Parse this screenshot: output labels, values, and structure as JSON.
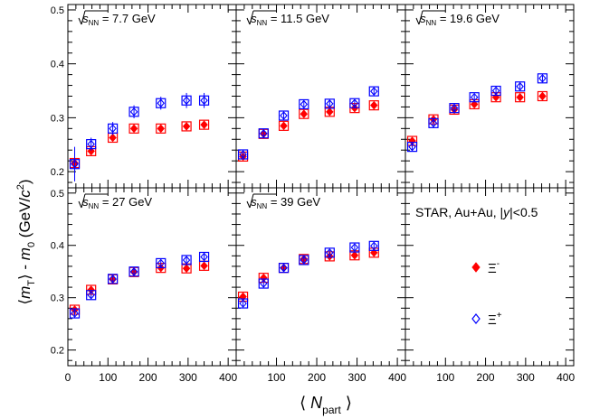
{
  "figure": {
    "ylabel": {
      "open": "⟨",
      "m": "m",
      "sub_T": "T",
      "close": "⟩ - ",
      "m0": "m",
      "sub_0": "0",
      "unit_open": " (GeV/",
      "c": "c",
      "sup_2": "2",
      "unit_close": ")"
    },
    "xlabel": {
      "open": "⟨ ",
      "n": "N",
      "sub": "part",
      "close": " ⟩"
    },
    "legend": {
      "title": {
        "prefix": "STAR, Au+Au, |",
        "y": "y",
        "suffix": "|<0.5"
      },
      "xi_minus": {
        "symbol": "Ξ",
        "sup": "-"
      },
      "xi_plus": {
        "symbol": "Ξ",
        "sup": "+"
      }
    },
    "colors": {
      "xi_minus": "#ff0000",
      "xi_plus": "#0000ff"
    }
  },
  "chart_data": [
    {
      "type": "scatter",
      "panel_label": {
        "root": "√",
        "s": "s",
        "sub": "NN",
        "energy": " = 7.7 GeV"
      },
      "xlim": [
        0,
        420
      ],
      "ylim": [
        0.17,
        0.51
      ],
      "yticks": [
        "0.2",
        "0.3",
        "0.4",
        "0.5"
      ],
      "xticks": [],
      "series": [
        {
          "x": [
            17,
            58,
            112,
            165,
            232,
            296,
            340
          ],
          "y": [
            0.216,
            0.238,
            0.263,
            0.28,
            0.28,
            0.284,
            0.287
          ]
        },
        {
          "x": [
            17,
            58,
            112,
            165,
            232,
            296,
            340
          ],
          "y": [
            0.214,
            0.251,
            0.28,
            0.311,
            0.327,
            0.332,
            0.332
          ],
          "err": [
            0.032,
            0.012,
            0.012,
            0.012,
            0.012,
            0.014,
            0.014
          ]
        }
      ]
    },
    {
      "type": "scatter",
      "panel_label": {
        "root": "√",
        "s": "s",
        "sub": "NN",
        "energy": " = 11.5 GeV"
      },
      "xlim": [
        0,
        420
      ],
      "ylim": [
        0.17,
        0.51
      ],
      "yticks": [],
      "xticks": [],
      "series": [
        {
          "x": [
            17,
            68,
            118,
            168,
            232,
            294,
            342
          ],
          "y": [
            0.228,
            0.27,
            0.285,
            0.307,
            0.311,
            0.318,
            0.323
          ]
        },
        {
          "x": [
            17,
            68,
            118,
            168,
            232,
            294,
            342
          ],
          "y": [
            0.232,
            0.271,
            0.304,
            0.325,
            0.326,
            0.327,
            0.349
          ],
          "err": [
            0.008,
            0.006,
            0.006,
            0.006,
            0.006,
            0.006,
            0.006
          ]
        }
      ]
    },
    {
      "type": "scatter",
      "panel_label": {
        "root": "√",
        "s": "s",
        "sub": "NN",
        "energy": " = 19.6 GeV"
      },
      "xlim": [
        0,
        420
      ],
      "ylim": [
        0.17,
        0.51
      ],
      "yticks": [],
      "xticks": [],
      "series": [
        {
          "x": [
            17,
            70,
            122,
            172,
            226,
            286,
            342
          ],
          "y": [
            0.257,
            0.297,
            0.315,
            0.325,
            0.338,
            0.338,
            0.34
          ]
        },
        {
          "x": [
            17,
            70,
            122,
            172,
            226,
            286,
            342
          ],
          "y": [
            0.246,
            0.29,
            0.318,
            0.338,
            0.35,
            0.358,
            0.373
          ],
          "err": [
            0.005,
            0.005,
            0.005,
            0.005,
            0.005,
            0.005,
            0.005
          ]
        }
      ]
    },
    {
      "type": "scatter",
      "panel_label": {
        "root": "√",
        "s": "s",
        "sub": "NN",
        "energy": " = 27 GeV"
      },
      "xlim": [
        0,
        420
      ],
      "ylim": [
        0.17,
        0.51
      ],
      "yticks": [
        "0.2",
        "0.3",
        "0.4",
        "0.5"
      ],
      "xticks": [
        "0",
        "100",
        "200",
        "300",
        "400"
      ],
      "series": [
        {
          "x": [
            17,
            58,
            112,
            165,
            232,
            296,
            340
          ],
          "y": [
            0.277,
            0.315,
            0.335,
            0.349,
            0.357,
            0.356,
            0.361
          ]
        },
        {
          "x": [
            17,
            58,
            112,
            165,
            232,
            296,
            340
          ],
          "y": [
            0.27,
            0.305,
            0.336,
            0.35,
            0.366,
            0.372,
            0.378
          ],
          "err": [
            0.005,
            0.005,
            0.005,
            0.005,
            0.005,
            0.005,
            0.005
          ]
        }
      ]
    },
    {
      "type": "scatter",
      "panel_label": {
        "root": "√",
        "s": "s",
        "sub": "NN",
        "energy": " = 39 GeV"
      },
      "xlim": [
        0,
        420
      ],
      "ylim": [
        0.17,
        0.51
      ],
      "yticks": [],
      "xticks": [
        "100",
        "200",
        "300",
        "400"
      ],
      "series": [
        {
          "x": [
            17,
            68,
            118,
            168,
            232,
            294,
            342
          ],
          "y": [
            0.302,
            0.338,
            0.357,
            0.374,
            0.379,
            0.381,
            0.386
          ]
        },
        {
          "x": [
            17,
            68,
            118,
            168,
            232,
            294,
            342
          ],
          "y": [
            0.289,
            0.327,
            0.357,
            0.372,
            0.386,
            0.396,
            0.399
          ],
          "err": [
            0.005,
            0.005,
            0.005,
            0.005,
            0.005,
            0.005,
            0.005
          ]
        }
      ]
    },
    {
      "type": "scatter",
      "panel_label": null,
      "xlim": [
        0,
        420
      ],
      "ylim": [
        0.17,
        0.51
      ],
      "yticks": [],
      "xticks": [
        "100",
        "200",
        "300",
        "400"
      ],
      "series": []
    }
  ]
}
